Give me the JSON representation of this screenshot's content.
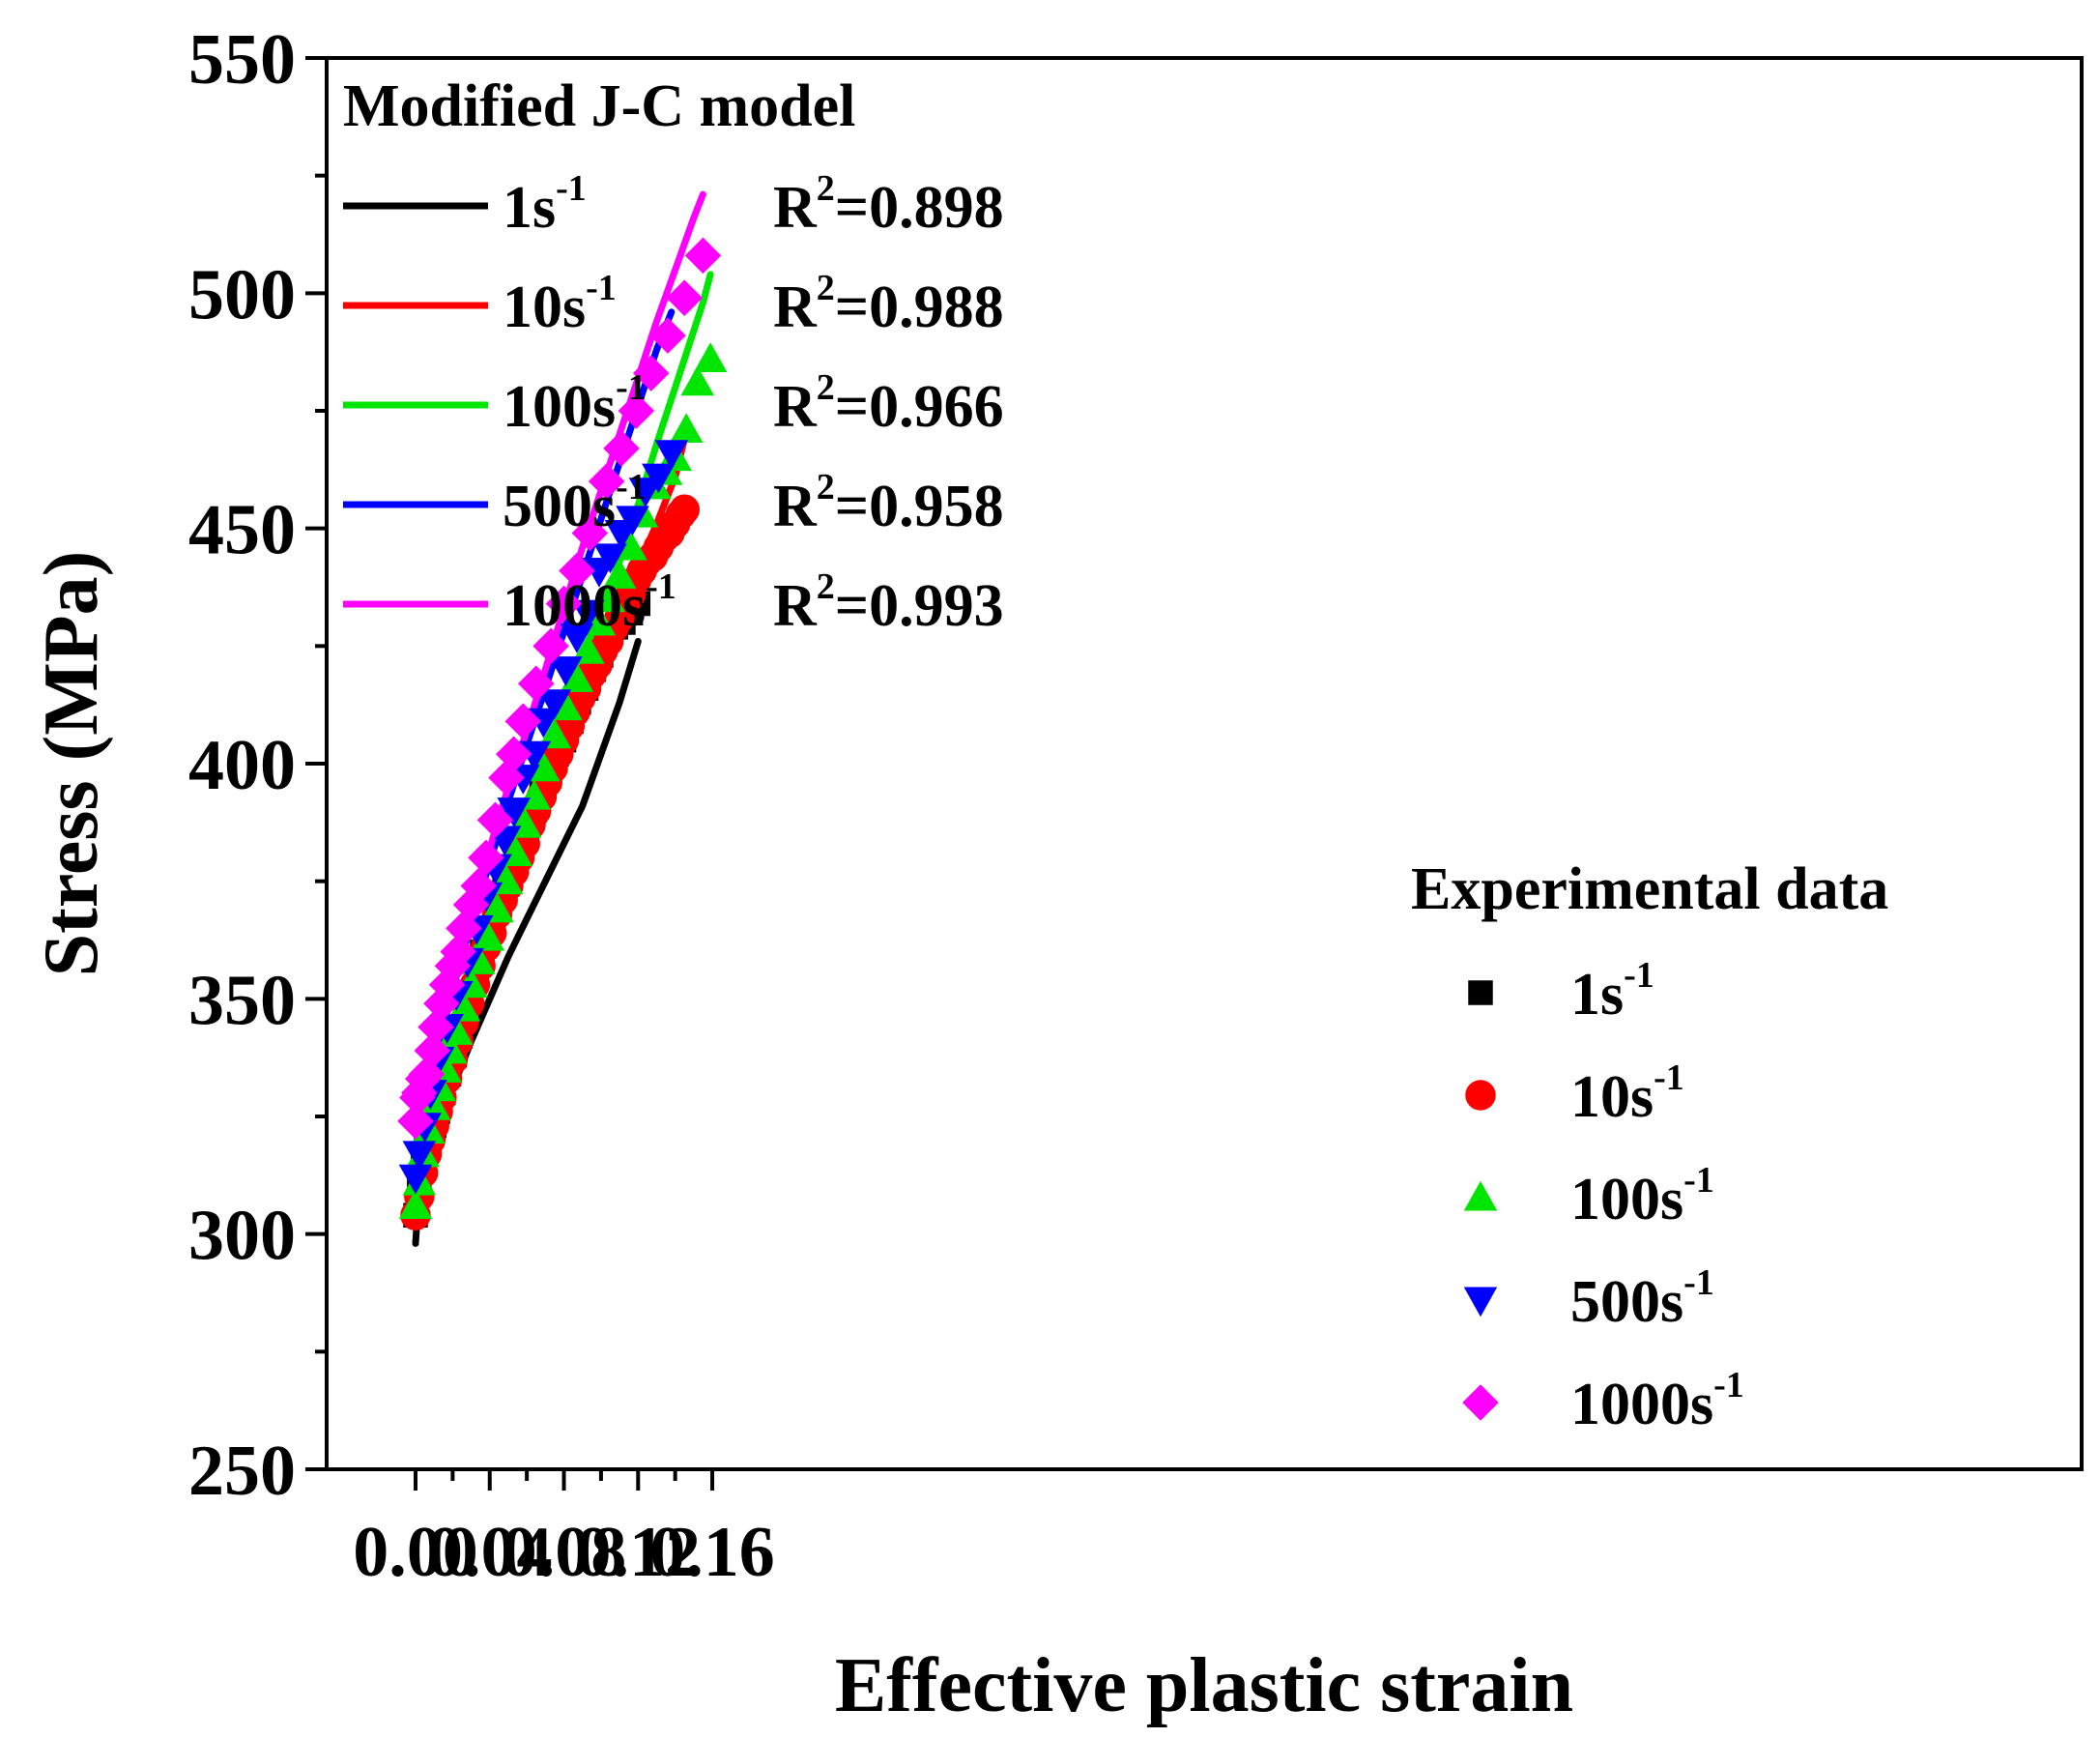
{
  "chart_data": {
    "type": "line",
    "xlabel": "Effective plastic strain",
    "ylabel": "Stress (MPa)",
    "xlim": [
      -0.005,
      0.17
    ],
    "ylim": [
      250,
      550
    ],
    "xticks": [
      "0.00",
      "0.04",
      "0.08",
      "0.12",
      "0.16"
    ],
    "xtick_values": [
      0,
      0.04,
      0.08,
      0.12,
      0.16
    ],
    "yticks": [
      "250",
      "300",
      "350",
      "400",
      "450",
      "500",
      "550"
    ],
    "ytick_values": [
      250,
      300,
      350,
      400,
      450,
      500,
      550
    ],
    "grid": false,
    "model_legend": {
      "title": "Modified J-C model",
      "placement": "top-left",
      "entries": [
        {
          "rate": "1",
          "unit": "s",
          "exp": "-1",
          "r2_text": "=0.898",
          "color": "#000000"
        },
        {
          "rate": "10",
          "unit": "s",
          "exp": "-1",
          "r2_text": "=0.988",
          "color": "#ff0000"
        },
        {
          "rate": "100",
          "unit": "s",
          "exp": "-1",
          "r2_text": "=0.966",
          "color": "#00e600"
        },
        {
          "rate": "500",
          "unit": "s",
          "exp": "-1",
          "r2_text": "=0.958",
          "color": "#0000ff"
        },
        {
          "rate": "1000",
          "unit": "s",
          "exp": "-1",
          "r2_text": "=0.993",
          "color": "#ff00ff"
        }
      ]
    },
    "experimental_legend": {
      "title": "Experimental data",
      "placement": "bottom-right",
      "entries": [
        {
          "rate": "1",
          "unit": "s",
          "exp": "-1",
          "marker": "square",
          "color": "#000000"
        },
        {
          "rate": "10",
          "unit": "s",
          "exp": "-1",
          "marker": "circle",
          "color": "#ff0000"
        },
        {
          "rate": "100",
          "unit": "s",
          "exp": "-1",
          "marker": "triangle-up",
          "color": "#00e600"
        },
        {
          "rate": "500",
          "unit": "s",
          "exp": "-1",
          "marker": "triangle-down",
          "color": "#0000ff"
        },
        {
          "rate": "1000",
          "unit": "s",
          "exp": "-1",
          "marker": "diamond",
          "color": "#ff00ff"
        }
      ]
    },
    "r2_symbol": "R",
    "r2_exp": "2",
    "model_curves": [
      {
        "color": "#000000",
        "x": [
          0,
          0.001,
          0.002,
          0.005,
          0.01,
          0.02,
          0.03,
          0.04,
          0.05,
          0.06,
          0.07,
          0.08,
          0.09,
          0.1,
          0.11,
          0.12
        ],
        "y": [
          298,
          304,
          307,
          312,
          319,
          331,
          341,
          350,
          359,
          367,
          375,
          383,
          391,
          402,
          413,
          426
        ]
      },
      {
        "color": "#ff0000",
        "x": [
          0,
          0.001,
          0.002,
          0.005,
          0.01,
          0.02,
          0.03,
          0.04,
          0.05,
          0.06,
          0.07,
          0.08,
          0.09,
          0.1,
          0.11,
          0.12,
          0.13,
          0.14,
          0.145
        ],
        "y": [
          303,
          307,
          310,
          316,
          323,
          337,
          348,
          360,
          372,
          384,
          395,
          406,
          416,
          425,
          434,
          442,
          451,
          461,
          469
        ]
      },
      {
        "color": "#00e600",
        "x": [
          0,
          0.001,
          0.002,
          0.005,
          0.01,
          0.02,
          0.03,
          0.04,
          0.05,
          0.06,
          0.07,
          0.08,
          0.09,
          0.1,
          0.11,
          0.12,
          0.13,
          0.14,
          0.15,
          0.155,
          0.159
        ],
        "y": [
          307,
          311,
          314,
          321,
          330,
          344,
          357,
          368,
          379,
          390,
          401,
          412,
          422,
          433,
          443,
          455,
          468,
          480,
          492,
          498,
          504
        ]
      },
      {
        "color": "#0000ff",
        "x": [
          0,
          0.001,
          0.002,
          0.005,
          0.01,
          0.02,
          0.03,
          0.04,
          0.05,
          0.06,
          0.07,
          0.08,
          0.09,
          0.1,
          0.11,
          0.12,
          0.13,
          0.138
        ],
        "y": [
          310,
          314,
          318,
          326,
          336,
          352,
          366,
          379,
          392,
          404,
          416,
          428,
          440,
          452,
          464,
          476,
          488,
          496
        ]
      },
      {
        "color": "#ff00ff",
        "x": [
          0,
          0.001,
          0.002,
          0.005,
          0.01,
          0.02,
          0.03,
          0.04,
          0.05,
          0.06,
          0.07,
          0.08,
          0.09,
          0.1,
          0.11,
          0.12,
          0.13,
          0.14,
          0.15,
          0.155
        ],
        "y": [
          316,
          321,
          325,
          332,
          342,
          356,
          369,
          382,
          395,
          407,
          420,
          433,
          446,
          458,
          470,
          482,
          494,
          505,
          516,
          521
        ]
      }
    ],
    "experimental_series": [
      {
        "marker": "square",
        "color": "#000000",
        "x": [
          0,
          0.002,
          0.004,
          0.006,
          0.008,
          0.01,
          0.012,
          0.015,
          0.018,
          0.021,
          0.024,
          0.027,
          0.03,
          0.033,
          0.036,
          0.04,
          0.044,
          0.048,
          0.052,
          0.056,
          0.06,
          0.064,
          0.068,
          0.072,
          0.076,
          0.08,
          0.084,
          0.088,
          0.092,
          0.096,
          0.1,
          0.104,
          0.108,
          0.112,
          0.116,
          0.12
        ],
        "y": [
          304,
          310,
          314,
          318,
          321,
          323,
          326,
          330,
          334,
          338,
          342,
          346,
          350,
          355,
          360,
          365,
          370,
          374,
          378,
          382,
          386,
          390,
          394,
          398,
          402,
          405,
          409,
          413,
          416,
          420,
          423,
          427,
          429,
          430,
          432,
          434
        ]
      },
      {
        "marker": "circle",
        "color": "#ff0000",
        "x": [
          0,
          0.002,
          0.004,
          0.006,
          0.008,
          0.01,
          0.012,
          0.014,
          0.017,
          0.02,
          0.023,
          0.026,
          0.029,
          0.032,
          0.035,
          0.038,
          0.041,
          0.044,
          0.047,
          0.05,
          0.053,
          0.056,
          0.059,
          0.062,
          0.065,
          0.068,
          0.071,
          0.074,
          0.077,
          0.08,
          0.083,
          0.086,
          0.089,
          0.092,
          0.095,
          0.098,
          0.101,
          0.104,
          0.107,
          0.11,
          0.113,
          0.116,
          0.119,
          0.122,
          0.125,
          0.128,
          0.131,
          0.134,
          0.137,
          0.14,
          0.143,
          0.145
        ],
        "y": [
          304,
          308,
          313,
          317,
          320,
          323,
          326,
          329,
          333,
          337,
          341,
          345,
          349,
          353,
          357,
          361,
          364,
          368,
          371,
          374,
          377,
          380,
          383,
          387,
          390,
          393,
          396,
          399,
          402,
          405,
          408,
          411,
          414,
          416,
          419,
          421,
          424,
          426,
          429,
          431,
          434,
          436,
          439,
          441,
          443,
          444,
          446,
          448,
          449,
          451,
          453,
          454
        ]
      },
      {
        "marker": "triangle-up",
        "color": "#00e600",
        "x": [
          0,
          0.002,
          0.004,
          0.007,
          0.01,
          0.013,
          0.016,
          0.019,
          0.022,
          0.026,
          0.03,
          0.034,
          0.039,
          0.044,
          0.049,
          0.054,
          0.059,
          0.064,
          0.069,
          0.075,
          0.081,
          0.087,
          0.093,
          0.099,
          0.104,
          0.11,
          0.116,
          0.122,
          0.129,
          0.135,
          0.14,
          0.146,
          0.152,
          0.159
        ],
        "y": [
          306,
          311,
          317,
          322,
          327,
          331,
          335,
          339,
          343,
          348,
          353,
          358,
          363,
          369,
          375,
          381,
          387,
          393,
          399,
          406,
          412,
          418,
          424,
          430,
          435,
          440,
          446,
          453,
          459,
          462,
          465,
          471,
          481,
          486
        ]
      },
      {
        "marker": "triangle-down",
        "color": "#0000ff",
        "x": [
          0,
          0.002,
          0.005,
          0.008,
          0.012,
          0.017,
          0.022,
          0.028,
          0.033,
          0.038,
          0.043,
          0.048,
          0.053,
          0.058,
          0.064,
          0.069,
          0.075,
          0.081,
          0.087,
          0.093,
          0.099,
          0.105,
          0.111,
          0.117,
          0.124,
          0.131,
          0.138
        ],
        "y": [
          312,
          317,
          323,
          330,
          337,
          344,
          351,
          358,
          365,
          372,
          378,
          384,
          390,
          397,
          402,
          409,
          413,
          420,
          427,
          432,
          441,
          444,
          449,
          452,
          458,
          461,
          466
        ]
      },
      {
        "marker": "diamond",
        "color": "#ff00ff",
        "x": [
          0,
          0.001,
          0.002,
          0.004,
          0.006,
          0.009,
          0.011,
          0.014,
          0.017,
          0.02,
          0.023,
          0.026,
          0.03,
          0.034,
          0.038,
          0.043,
          0.049,
          0.053,
          0.058,
          0.065,
          0.073,
          0.08,
          0.087,
          0.094,
          0.103,
          0.111,
          0.119,
          0.127,
          0.136,
          0.145,
          0.155
        ],
        "y": [
          324,
          329,
          330,
          333,
          334,
          339,
          344,
          349,
          353,
          357,
          360,
          365,
          370,
          374,
          380,
          388,
          397,
          402,
          409,
          417,
          425,
          434,
          441,
          449,
          460,
          467,
          475,
          483,
          491,
          499,
          508
        ]
      }
    ]
  }
}
